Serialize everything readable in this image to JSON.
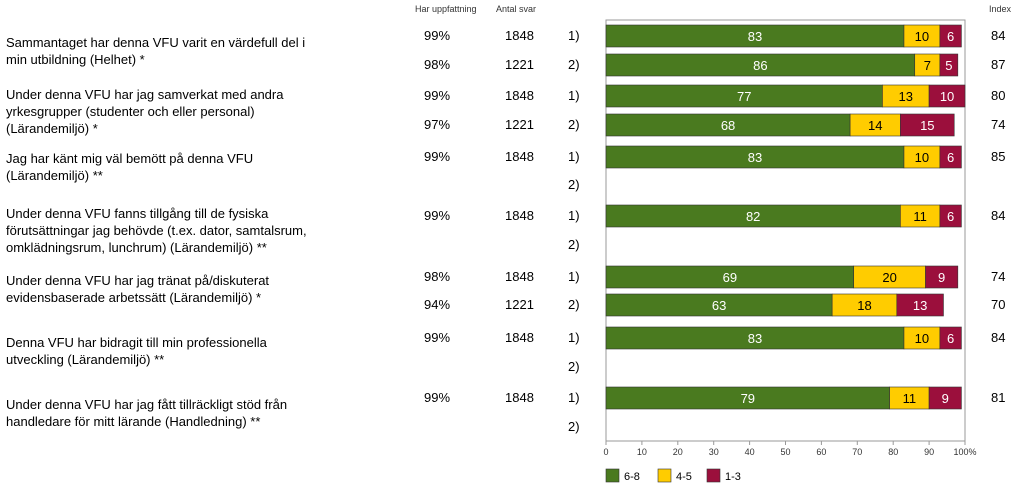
{
  "headers": {
    "perception": "Har uppfattning",
    "responses": "Antal svar",
    "index": "Index"
  },
  "questions": [
    {
      "text": "Sammantaget har denna VFU varit en värdefull del i\nmin utbildning (Helhet) *"
    },
    {
      "text": "Under denna VFU har jag samverkat med andra\nyrkesgrupper (studenter och eller personal)\n(Lärandemiljö) *"
    },
    {
      "text": "Jag har känt mig väl bemött på denna VFU\n(Lärandemiljö) **"
    },
    {
      "text": "Under denna VFU fanns tillgång till de fysiska\nförutsättningar jag behövde (t.ex. dator, samtalsrum,\nomklädningsrum, lunchrum) (Lärandemiljö) **"
    },
    {
      "text": "Under denna VFU har jag tränat på/diskuterat\nevidensbaserade arbetssätt (Lärandemiljö) *"
    },
    {
      "text": "Denna VFU har bidragit till min professionella\nutveckling (Lärandemiljö) **"
    },
    {
      "text": "Under denna VFU har jag fått tillräckligt stöd från\nhandledare för mitt lärande (Handledning) **"
    }
  ],
  "rows": [
    {
      "group": "1)",
      "perception": "99%",
      "responses": "1848",
      "index": "84"
    },
    {
      "group": "2)",
      "perception": "98%",
      "responses": "1221",
      "index": "87"
    },
    {
      "group": "1)",
      "perception": "99%",
      "responses": "1848",
      "index": "80"
    },
    {
      "group": "2)",
      "perception": "97%",
      "responses": "1221",
      "index": "74"
    },
    {
      "group": "1)",
      "perception": "99%",
      "responses": "1848",
      "index": "85"
    },
    {
      "group": "2)",
      "perception": "",
      "responses": "",
      "index": ""
    },
    {
      "group": "1)",
      "perception": "99%",
      "responses": "1848",
      "index": "84"
    },
    {
      "group": "2)",
      "perception": "",
      "responses": "",
      "index": ""
    },
    {
      "group": "1)",
      "perception": "98%",
      "responses": "1848",
      "index": "74"
    },
    {
      "group": "2)",
      "perception": "94%",
      "responses": "1221",
      "index": "70"
    },
    {
      "group": "1)",
      "perception": "99%",
      "responses": "1848",
      "index": "84"
    },
    {
      "group": "2)",
      "perception": "",
      "responses": "",
      "index": ""
    },
    {
      "group": "1)",
      "perception": "99%",
      "responses": "1848",
      "index": "81"
    },
    {
      "group": "2)",
      "perception": "",
      "responses": "",
      "index": ""
    }
  ],
  "chart_data": {
    "type": "bar",
    "orientation": "horizontal",
    "stacked": true,
    "xlim": [
      0,
      100
    ],
    "x_ticks": [
      "0",
      "10",
      "20",
      "30",
      "40",
      "50",
      "60",
      "70",
      "80",
      "90",
      "100%"
    ],
    "series": [
      {
        "name": "6-8",
        "color": "#4a7a1f",
        "values": [
          83,
          86,
          77,
          68,
          83,
          null,
          82,
          null,
          69,
          63,
          83,
          null,
          79,
          null
        ]
      },
      {
        "name": "4-5",
        "color": "#ffcc00",
        "values": [
          10,
          7,
          13,
          14,
          10,
          null,
          11,
          null,
          20,
          18,
          10,
          null,
          11,
          null
        ]
      },
      {
        "name": "1-3",
        "color": "#9b0f3c",
        "values": [
          6,
          5,
          10,
          15,
          6,
          null,
          6,
          null,
          9,
          13,
          6,
          null,
          9,
          null
        ]
      }
    ],
    "legend_position": "bottom"
  }
}
